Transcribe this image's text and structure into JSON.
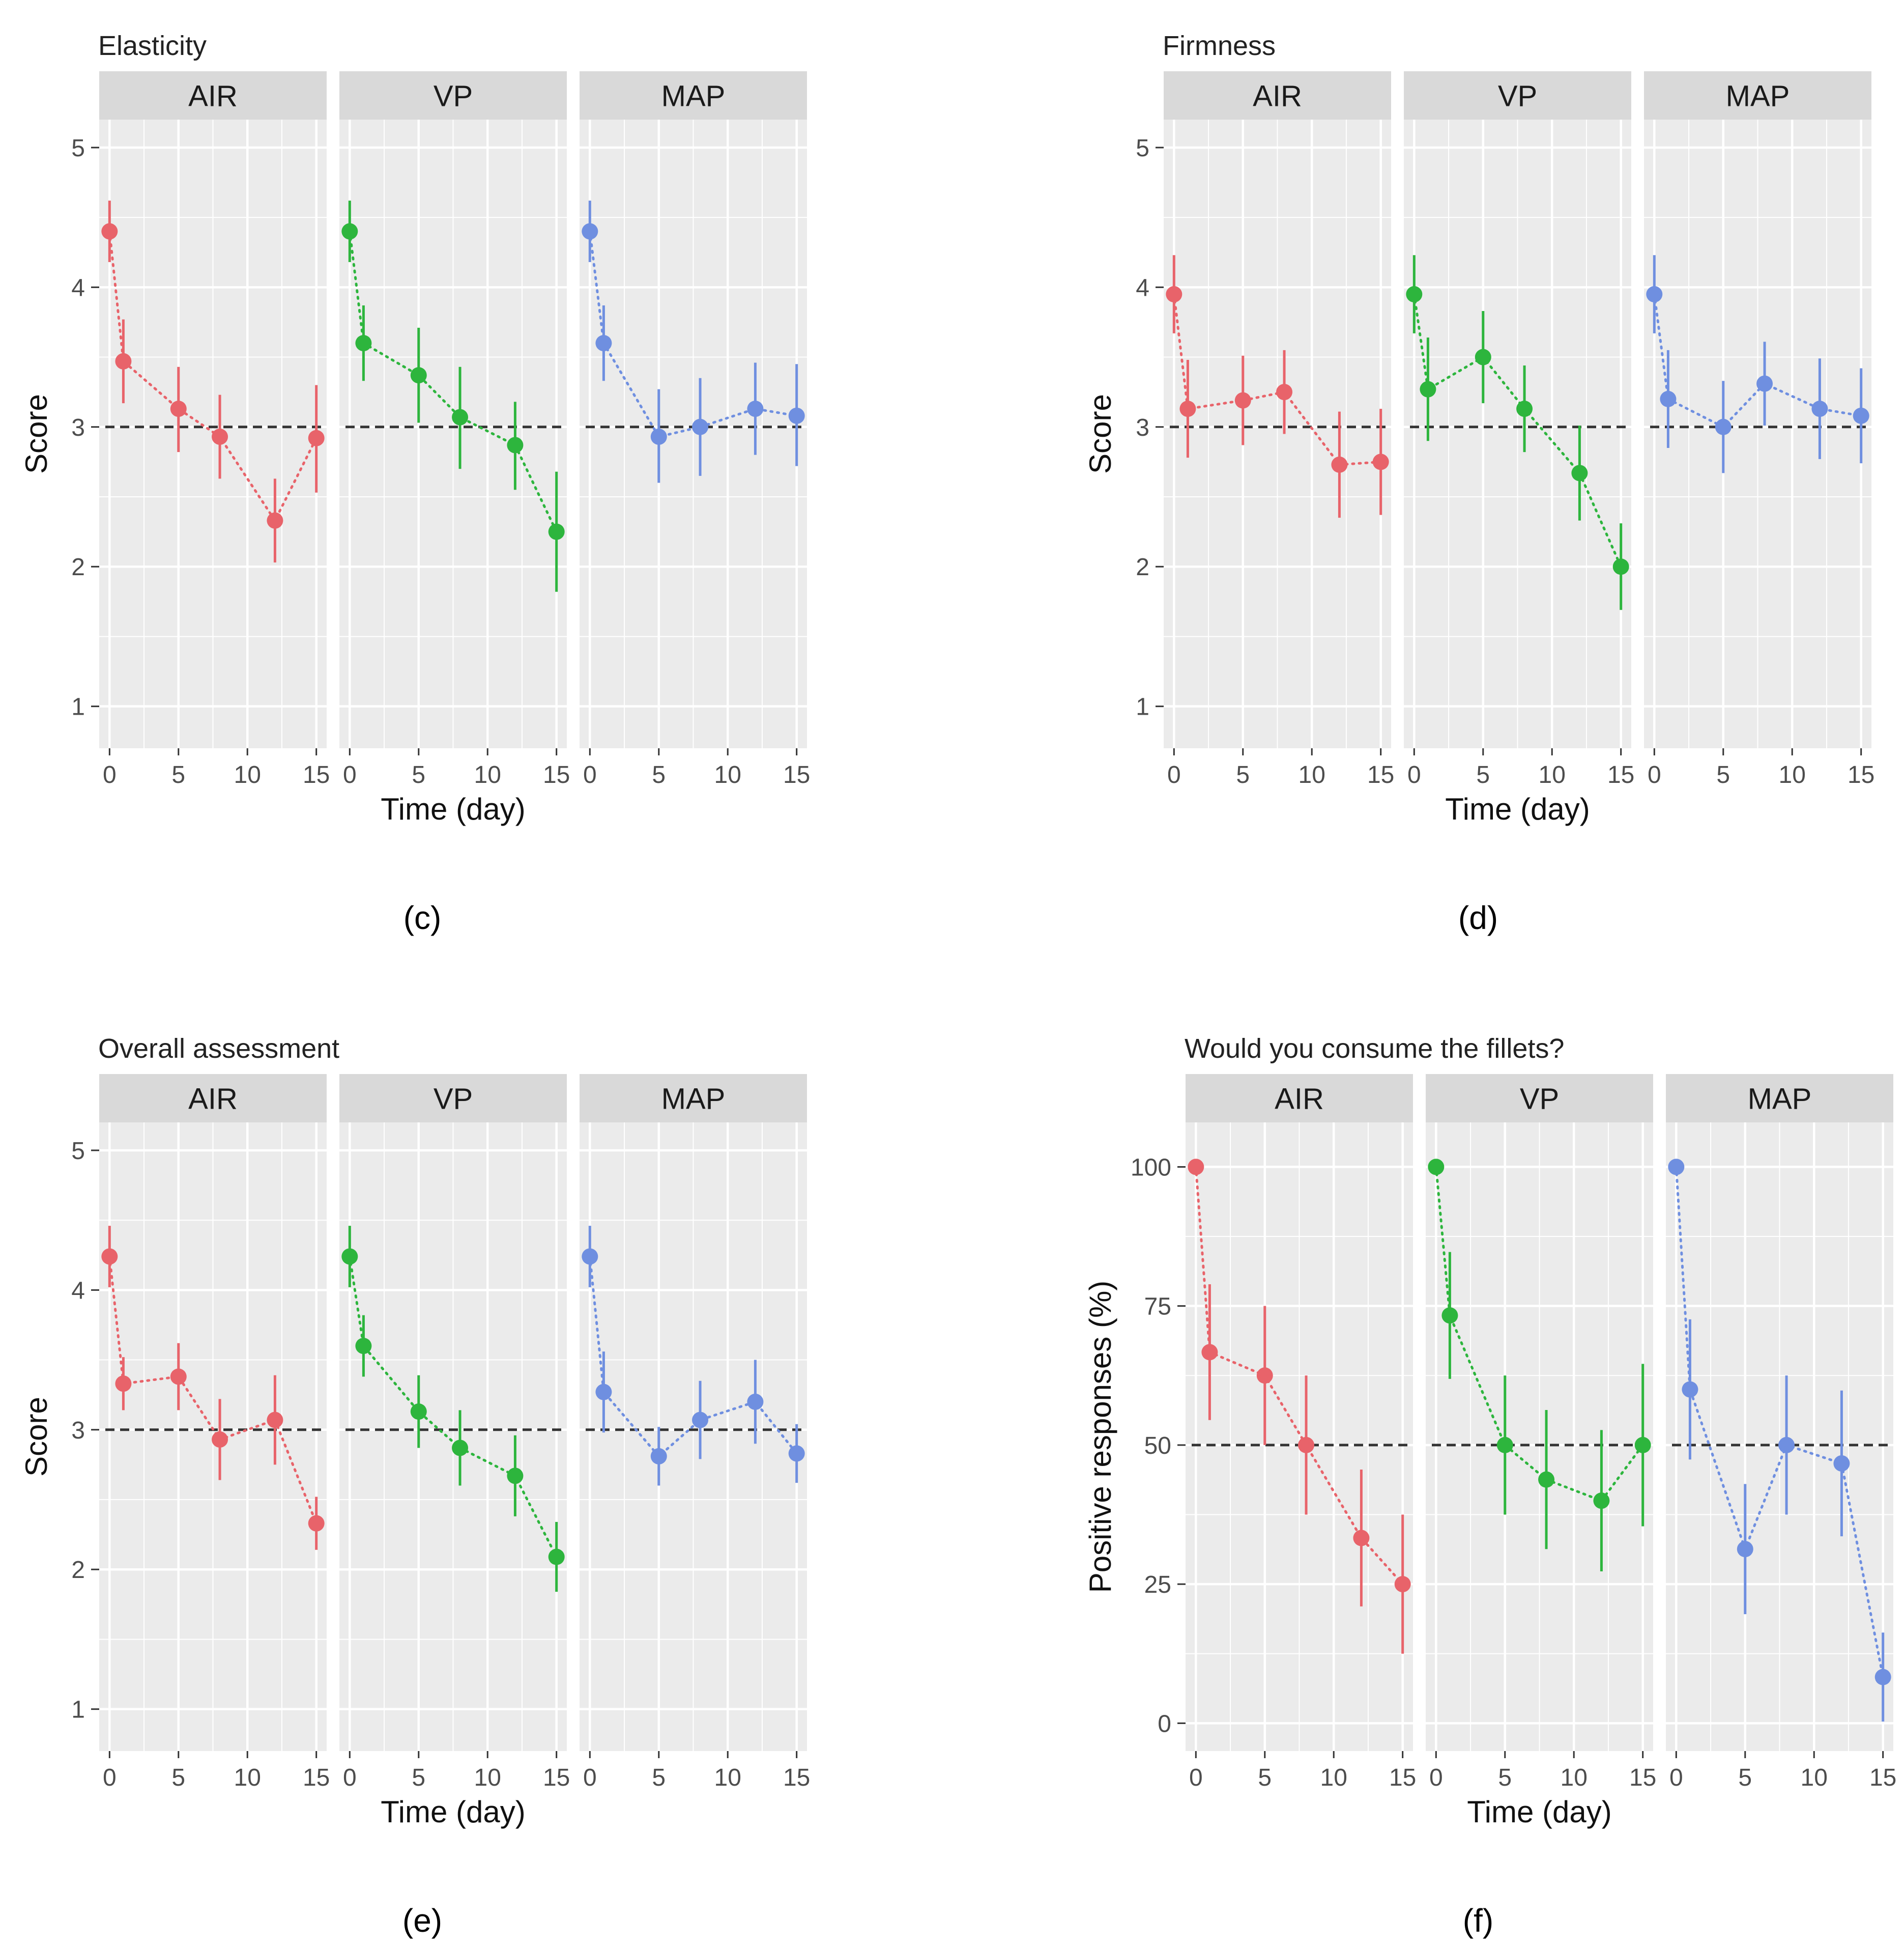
{
  "figure": {
    "captions": [
      "(c)",
      "(d)",
      "(e)",
      "(f)"
    ]
  },
  "colors": {
    "AIR": "#E8636A",
    "VP": "#2DB53D",
    "MAP": "#6F8FE0",
    "panel_bg": "#EBEBEB",
    "strip_bg": "#D9D9D9",
    "grid": "#FFFFFF",
    "reference_line": "#333333"
  },
  "chart_data": [
    {
      "id": "c",
      "type": "scatter",
      "title": "Elasticity",
      "xlabel": "Time (day)",
      "ylabel": "Score",
      "x_ticks": [
        "0",
        "5",
        "10",
        "15"
      ],
      "y_ticks": [
        "1",
        "2",
        "3",
        "4",
        "5"
      ],
      "xlim": [
        -0.75,
        15.75
      ],
      "ylim": [
        0.7,
        5.2
      ],
      "reference_line": 3,
      "x": [
        0,
        1,
        5,
        8,
        12,
        15
      ],
      "series": [
        {
          "name": "AIR",
          "values": [
            4.4,
            3.47,
            3.13,
            2.93,
            2.33,
            2.92
          ],
          "err_low": [
            4.18,
            3.17,
            2.82,
            2.63,
            2.03,
            2.53
          ],
          "err_high": [
            4.62,
            3.77,
            3.43,
            3.23,
            2.63,
            3.3
          ]
        },
        {
          "name": "VP",
          "values": [
            4.4,
            3.6,
            3.37,
            3.07,
            2.87,
            2.25
          ],
          "err_low": [
            4.18,
            3.33,
            3.03,
            2.7,
            2.55,
            1.82
          ],
          "err_high": [
            4.62,
            3.87,
            3.71,
            3.43,
            3.18,
            2.68
          ]
        },
        {
          "name": "MAP",
          "values": [
            4.4,
            3.6,
            2.93,
            3.0,
            3.13,
            3.08
          ],
          "err_low": [
            4.18,
            3.33,
            2.6,
            2.65,
            2.8,
            2.72
          ],
          "err_high": [
            4.62,
            3.87,
            3.27,
            3.35,
            3.46,
            3.45
          ]
        }
      ]
    },
    {
      "id": "d",
      "type": "scatter",
      "title": "Firmness",
      "xlabel": "Time (day)",
      "ylabel": "Score",
      "x_ticks": [
        "0",
        "5",
        "10",
        "15"
      ],
      "y_ticks": [
        "1",
        "2",
        "3",
        "4",
        "5"
      ],
      "xlim": [
        -0.75,
        15.75
      ],
      "ylim": [
        0.7,
        5.2
      ],
      "reference_line": 3,
      "x": [
        0,
        1,
        5,
        8,
        12,
        15
      ],
      "series": [
        {
          "name": "AIR",
          "values": [
            3.95,
            3.13,
            3.19,
            3.25,
            2.73,
            2.75
          ],
          "err_low": [
            3.67,
            2.78,
            2.87,
            2.95,
            2.35,
            2.37
          ],
          "err_high": [
            4.23,
            3.48,
            3.51,
            3.55,
            3.11,
            3.13
          ]
        },
        {
          "name": "VP",
          "values": [
            3.95,
            3.27,
            3.5,
            3.13,
            2.67,
            2.0
          ],
          "err_low": [
            3.67,
            2.9,
            3.17,
            2.82,
            2.33,
            1.69
          ],
          "err_high": [
            4.23,
            3.64,
            3.83,
            3.44,
            3.01,
            2.31
          ]
        },
        {
          "name": "MAP",
          "values": [
            3.95,
            3.2,
            3.0,
            3.31,
            3.13,
            3.08
          ],
          "err_low": [
            3.67,
            2.85,
            2.67,
            3.01,
            2.77,
            2.74
          ],
          "err_high": [
            4.23,
            3.55,
            3.33,
            3.61,
            3.49,
            3.42
          ]
        }
      ]
    },
    {
      "id": "e",
      "type": "scatter",
      "title": "Overall assessment",
      "xlabel": "Time (day)",
      "ylabel": "Score",
      "x_ticks": [
        "0",
        "5",
        "10",
        "15"
      ],
      "y_ticks": [
        "1",
        "2",
        "3",
        "4",
        "5"
      ],
      "xlim": [
        -0.75,
        15.75
      ],
      "ylim": [
        0.7,
        5.2
      ],
      "reference_line": 3,
      "x": [
        0,
        1,
        5,
        8,
        12,
        15
      ],
      "series": [
        {
          "name": "AIR",
          "values": [
            4.24,
            3.33,
            3.38,
            2.93,
            3.07,
            2.33
          ],
          "err_low": [
            4.02,
            3.14,
            3.14,
            2.64,
            2.75,
            2.14
          ],
          "err_high": [
            4.46,
            3.52,
            3.62,
            3.22,
            3.39,
            2.52
          ]
        },
        {
          "name": "VP",
          "values": [
            4.24,
            3.6,
            3.13,
            2.87,
            2.67,
            2.09
          ],
          "err_low": [
            4.02,
            3.38,
            2.87,
            2.6,
            2.38,
            1.84
          ],
          "err_high": [
            4.46,
            3.82,
            3.39,
            3.14,
            2.96,
            2.34
          ]
        },
        {
          "name": "MAP",
          "values": [
            4.24,
            3.27,
            2.81,
            3.07,
            3.2,
            2.83
          ],
          "err_low": [
            4.02,
            2.98,
            2.6,
            2.79,
            2.9,
            2.62
          ],
          "err_high": [
            4.46,
            3.56,
            3.02,
            3.35,
            3.5,
            3.04
          ]
        }
      ]
    },
    {
      "id": "f",
      "type": "scatter",
      "title": "Would you consume the fillets?",
      "xlabel": "Time (day)",
      "ylabel": "Positive responses (%)",
      "x_ticks": [
        "0",
        "5",
        "10",
        "15"
      ],
      "y_ticks": [
        "0",
        "25",
        "50",
        "75",
        "100"
      ],
      "xlim": [
        -0.75,
        15.75
      ],
      "ylim": [
        -5,
        108
      ],
      "reference_line": 50,
      "x": [
        0,
        1,
        5,
        8,
        12,
        15
      ],
      "series": [
        {
          "name": "AIR",
          "values": [
            100,
            66.7,
            62.5,
            50,
            33.3,
            25
          ],
          "err_low": [
            100,
            54.5,
            50,
            37.5,
            21,
            12.5
          ],
          "err_high": [
            100,
            78.9,
            75,
            62.5,
            45.6,
            37.5
          ]
        },
        {
          "name": "VP",
          "values": [
            100,
            73.3,
            50,
            43.8,
            40,
            50
          ],
          "err_low": [
            100,
            61.9,
            37.5,
            31.3,
            27.3,
            35.4
          ],
          "err_high": [
            100,
            84.7,
            62.5,
            56.3,
            52.7,
            64.6
          ]
        },
        {
          "name": "MAP",
          "values": [
            100,
            60,
            31.3,
            50,
            46.7,
            8.3
          ],
          "err_low": [
            100,
            47.4,
            19.6,
            37.5,
            33.6,
            0.3
          ],
          "err_high": [
            100,
            72.6,
            43,
            62.5,
            59.8,
            16.3
          ]
        }
      ]
    }
  ]
}
